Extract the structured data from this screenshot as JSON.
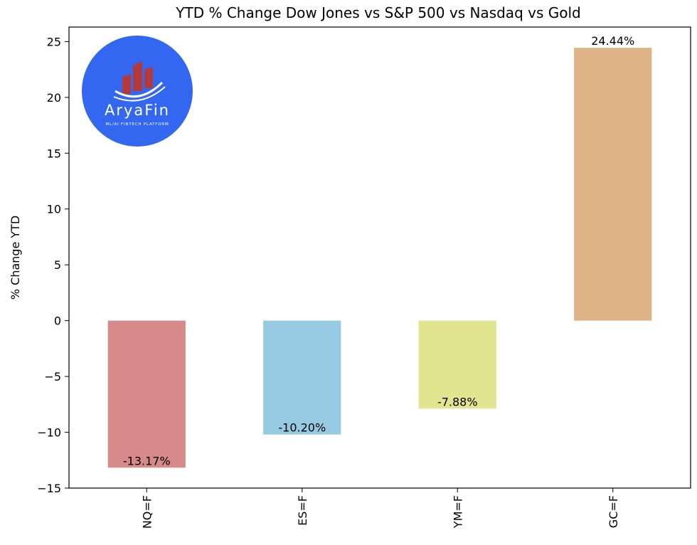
{
  "chart_data": {
    "type": "bar",
    "title": "YTD % Change Dow Jones vs S&P 500 vs Nasdaq vs Gold",
    "xlabel": "",
    "ylabel": "% Change YTD",
    "categories": [
      "NQ=F",
      "ES=F",
      "YM=F",
      "GC=F"
    ],
    "values": [
      -13.17,
      -10.2,
      -7.88,
      24.44
    ],
    "data_labels": [
      "-13.17%",
      "-10.20%",
      "-7.88%",
      "24.44%"
    ],
    "colors": [
      "#d68a89",
      "#96cae3",
      "#e2e58f",
      "#deb386"
    ],
    "ylim": [
      -15,
      26.3
    ],
    "yticks": [
      -15,
      -10,
      -5,
      0,
      5,
      10,
      15,
      20,
      25
    ],
    "ytick_labels": [
      "−15",
      "−10",
      "−5",
      "0",
      "5",
      "10",
      "15",
      "20",
      "25"
    ],
    "grid": false,
    "legend": "none"
  },
  "logo": {
    "name": "AryaFin",
    "tagline": "ML/AI FINTECH PLATFORM",
    "circle_color": "#3467ef",
    "bar_color": "#b23a3a"
  }
}
